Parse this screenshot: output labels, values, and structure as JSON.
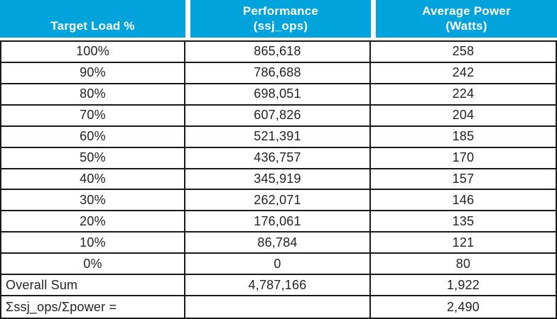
{
  "colors": {
    "header_bg": "#00A3DC",
    "header_text": "#FFFFFF",
    "body_text": "#232323",
    "border": "#1A1A1A"
  },
  "header": {
    "col1_line1": "Target Load %",
    "col2_line1": "Performance",
    "col2_line2": "(ssj_ops)",
    "col3_line1": "Average Power",
    "col3_line2": "(Watts)"
  },
  "rows": [
    {
      "load": "100%",
      "perf": "865,618",
      "power": "258"
    },
    {
      "load": "90%",
      "perf": "786,688",
      "power": "242"
    },
    {
      "load": "80%",
      "perf": "698,051",
      "power": "224"
    },
    {
      "load": "70%",
      "perf": "607,826",
      "power": "204"
    },
    {
      "load": "60%",
      "perf": "521,391",
      "power": "185"
    },
    {
      "load": "50%",
      "perf": "436,757",
      "power": "170"
    },
    {
      "load": "40%",
      "perf": "345,919",
      "power": "157"
    },
    {
      "load": "30%",
      "perf": "262,071",
      "power": "146"
    },
    {
      "load": "20%",
      "perf": "176,061",
      "power": "135"
    },
    {
      "load": "10%",
      "perf": "86,784",
      "power": "121"
    },
    {
      "load": "0%",
      "perf": "0",
      "power": "80"
    }
  ],
  "summary": {
    "overall_label": "Overall Sum",
    "overall_perf": "4,787,166",
    "overall_power": "1,922",
    "ratio_label": "Σssj_ops/Σpower =",
    "ratio_perf": "",
    "ratio_power": "2,490"
  },
  "chart_data": {
    "type": "table",
    "title": "SPECpower benchmark load levels",
    "columns": [
      "Target Load %",
      "Performance (ssj_ops)",
      "Average Power (Watts)"
    ],
    "rows": [
      [
        "100%",
        865618,
        258
      ],
      [
        "90%",
        786688,
        242
      ],
      [
        "80%",
        698051,
        224
      ],
      [
        "70%",
        607826,
        204
      ],
      [
        "60%",
        521391,
        185
      ],
      [
        "50%",
        436757,
        170
      ],
      [
        "40%",
        345919,
        157
      ],
      [
        "30%",
        262071,
        146
      ],
      [
        "20%",
        176061,
        135
      ],
      [
        "10%",
        86784,
        121
      ],
      [
        "0%",
        0,
        80
      ],
      [
        "Overall Sum",
        4787166,
        1922
      ],
      [
        "Σssj_ops/Σpower =",
        null,
        2490
      ]
    ]
  }
}
